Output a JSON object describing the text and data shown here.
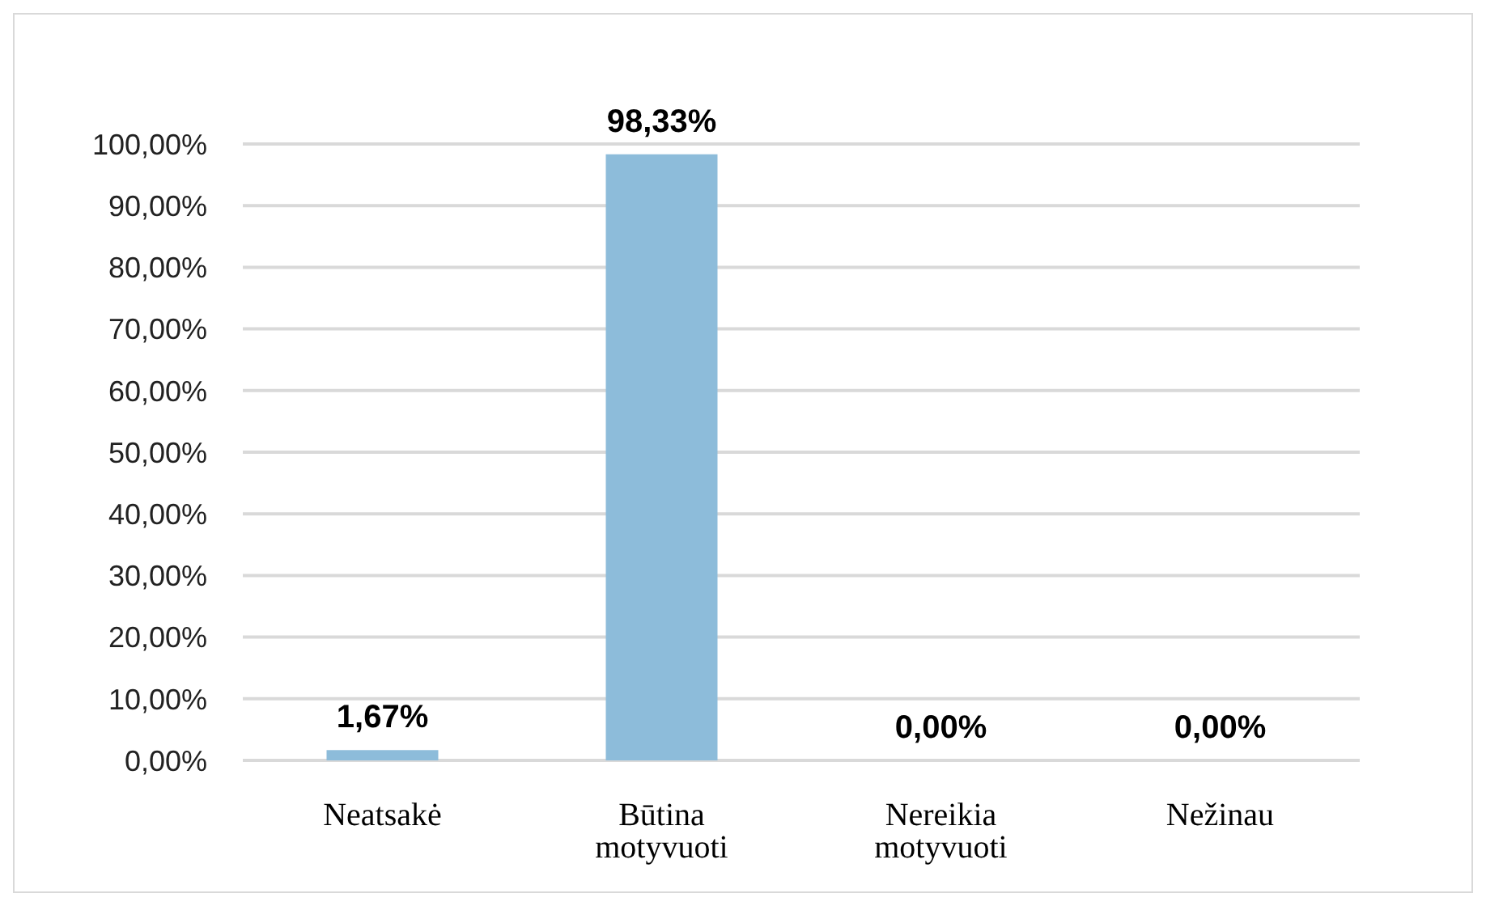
{
  "chart_data": {
    "type": "bar",
    "categories": [
      "Neatsakė",
      "Būtina motyvuoti",
      "Nereikia motyvuoti",
      "Nežinau"
    ],
    "values": [
      1.67,
      98.33,
      0,
      0
    ],
    "value_labels": [
      "1,67%",
      "98,33%",
      "0,00%",
      "0,00%"
    ],
    "color": "#8dbcda",
    "ylim": [
      0,
      100
    ],
    "yticks": [
      {
        "value": 0,
        "label": "0,00%"
      },
      {
        "value": 10,
        "label": "10,00%"
      },
      {
        "value": 20,
        "label": "20,00%"
      },
      {
        "value": 30,
        "label": "30,00%"
      },
      {
        "value": 40,
        "label": "40,00%"
      },
      {
        "value": 50,
        "label": "50,00%"
      },
      {
        "value": 60,
        "label": "60,00%"
      },
      {
        "value": 70,
        "label": "70,00%"
      },
      {
        "value": 80,
        "label": "80,00%"
      },
      {
        "value": 90,
        "label": "90,00%"
      },
      {
        "value": 100,
        "label": "100,00%"
      }
    ],
    "grid": "y",
    "legend": false
  }
}
